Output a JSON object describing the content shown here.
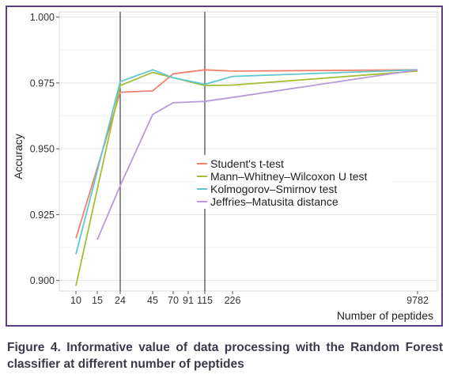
{
  "chart_data": {
    "type": "line",
    "xlabel": "Number of peptides",
    "ylabel": "Accuracy",
    "ylim": [
      0.896,
      1.002
    ],
    "x_tick_labels": [
      "10",
      "15",
      "24",
      "45",
      "70",
      "91",
      "115",
      "226",
      "9782"
    ],
    "y_tick_labels": [
      "0.900",
      "0.925",
      "0.950",
      "0.975",
      "1.000"
    ],
    "y_ticks": [
      0.9,
      0.925,
      0.95,
      0.975,
      1.0
    ],
    "vertical_lines_at": [
      "24",
      "115"
    ],
    "grid": true,
    "legend_position": "center-right",
    "series": [
      {
        "name": "Student's t-test",
        "color": "#f08070",
        "points": [
          [
            "10",
            0.916
          ],
          [
            "24",
            0.9715
          ],
          [
            "45",
            0.972
          ],
          [
            "70",
            0.9785
          ],
          [
            "115",
            0.98
          ],
          [
            "226",
            0.9795
          ],
          [
            "9782",
            0.98
          ]
        ]
      },
      {
        "name": "Mann–Whitney–Wilcoxon U test",
        "color": "#a3bf36",
        "points": [
          [
            "10",
            0.898
          ],
          [
            "24",
            0.974
          ],
          [
            "45",
            0.979
          ],
          [
            "70",
            0.977
          ],
          [
            "115",
            0.974
          ],
          [
            "226",
            0.9742
          ],
          [
            "9782",
            0.9795
          ]
        ]
      },
      {
        "name": "Kolmogorov–Smirnov test",
        "color": "#5ec8d0",
        "points": [
          [
            "10",
            0.91
          ],
          [
            "24",
            0.9755
          ],
          [
            "45",
            0.98
          ],
          [
            "70",
            0.977
          ],
          [
            "115",
            0.9745
          ],
          [
            "226",
            0.9775
          ],
          [
            "9782",
            0.98
          ]
        ]
      },
      {
        "name": "Jeffries–Matusita distance",
        "color": "#b89ad8",
        "points": [
          [
            "15",
            0.9155
          ],
          [
            "24",
            0.936
          ],
          [
            "45",
            0.963
          ],
          [
            "70",
            0.9675
          ],
          [
            "115",
            0.968
          ],
          [
            "226",
            0.9695
          ],
          [
            "9782",
            0.98
          ]
        ]
      }
    ]
  },
  "caption": "Figure 4. Informative value of data processing with the Random Forest classifier at different number of peptides"
}
